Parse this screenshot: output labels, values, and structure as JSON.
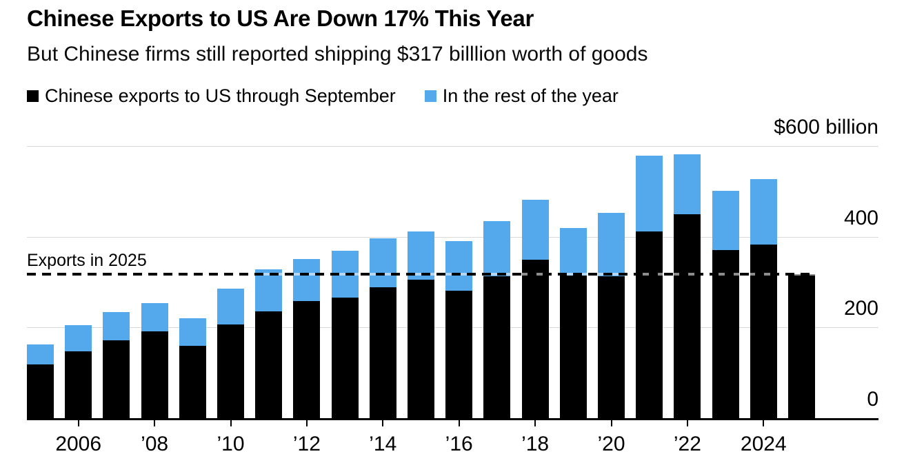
{
  "header": {
    "title": "Chinese Exports to US Are Down 17% This Year",
    "subtitle": "But Chinese firms still reported shipping $317 billlion worth of goods"
  },
  "legend": {
    "items": [
      {
        "label": "Chinese exports to US through September",
        "color": "#000000"
      },
      {
        "label": "In the rest of the year",
        "color": "#54A8EC"
      }
    ]
  },
  "chart_data": {
    "type": "bar",
    "stacked": true,
    "title": "Chinese Exports to US Are Down 17% This Year",
    "subtitle": "But Chinese firms still reported shipping $317 billlion worth of goods",
    "unit": "billion USD",
    "categories": [
      2005,
      2006,
      2007,
      2008,
      2009,
      2010,
      2011,
      2012,
      2013,
      2014,
      2015,
      2016,
      2017,
      2018,
      2019,
      2020,
      2021,
      2022,
      2023,
      2024,
      2025
    ],
    "series": [
      {
        "name": "Chinese exports to US through September",
        "color": "#000000",
        "values": [
          118,
          147,
          171,
          191,
          159,
          206,
          235,
          258,
          266,
          289,
          305,
          281,
          313,
          350,
          315,
          313,
          412,
          450,
          371,
          383,
          317
        ]
      },
      {
        "name": "In the rest of the year",
        "color": "#54A8EC",
        "values": [
          44,
          58,
          63,
          62,
          62,
          79,
          93,
          93,
          103,
          108,
          107,
          110,
          121,
          131,
          105,
          139,
          167,
          132,
          131,
          144,
          0
        ]
      }
    ],
    "ylim": [
      0,
      600
    ],
    "yticks": [
      {
        "value": 600,
        "label": "$600 billion"
      },
      {
        "value": 400,
        "label": "400"
      },
      {
        "value": 200,
        "label": "200"
      },
      {
        "value": 0,
        "label": "0"
      }
    ],
    "xticks": [
      {
        "year": 2006,
        "label": "2006"
      },
      {
        "year": 2008,
        "label": "’08"
      },
      {
        "year": 2010,
        "label": "’10"
      },
      {
        "year": 2012,
        "label": "’12"
      },
      {
        "year": 2014,
        "label": "’14"
      },
      {
        "year": 2016,
        "label": "’16"
      },
      {
        "year": 2018,
        "label": "’18"
      },
      {
        "year": 2020,
        "label": "’20"
      },
      {
        "year": 2022,
        "label": "’22"
      },
      {
        "year": 2024,
        "label": "2024"
      }
    ],
    "reference_line": {
      "label": "Exports in 2025",
      "value": 317
    },
    "grid": true,
    "legend_position": "top"
  },
  "colors": {
    "background": "#FFFFFF",
    "bar_primary": "#000000",
    "bar_secondary": "#54A8EC",
    "gridline": "#D9D9D9",
    "axis": "#000000",
    "reference_dash": "#000000"
  }
}
